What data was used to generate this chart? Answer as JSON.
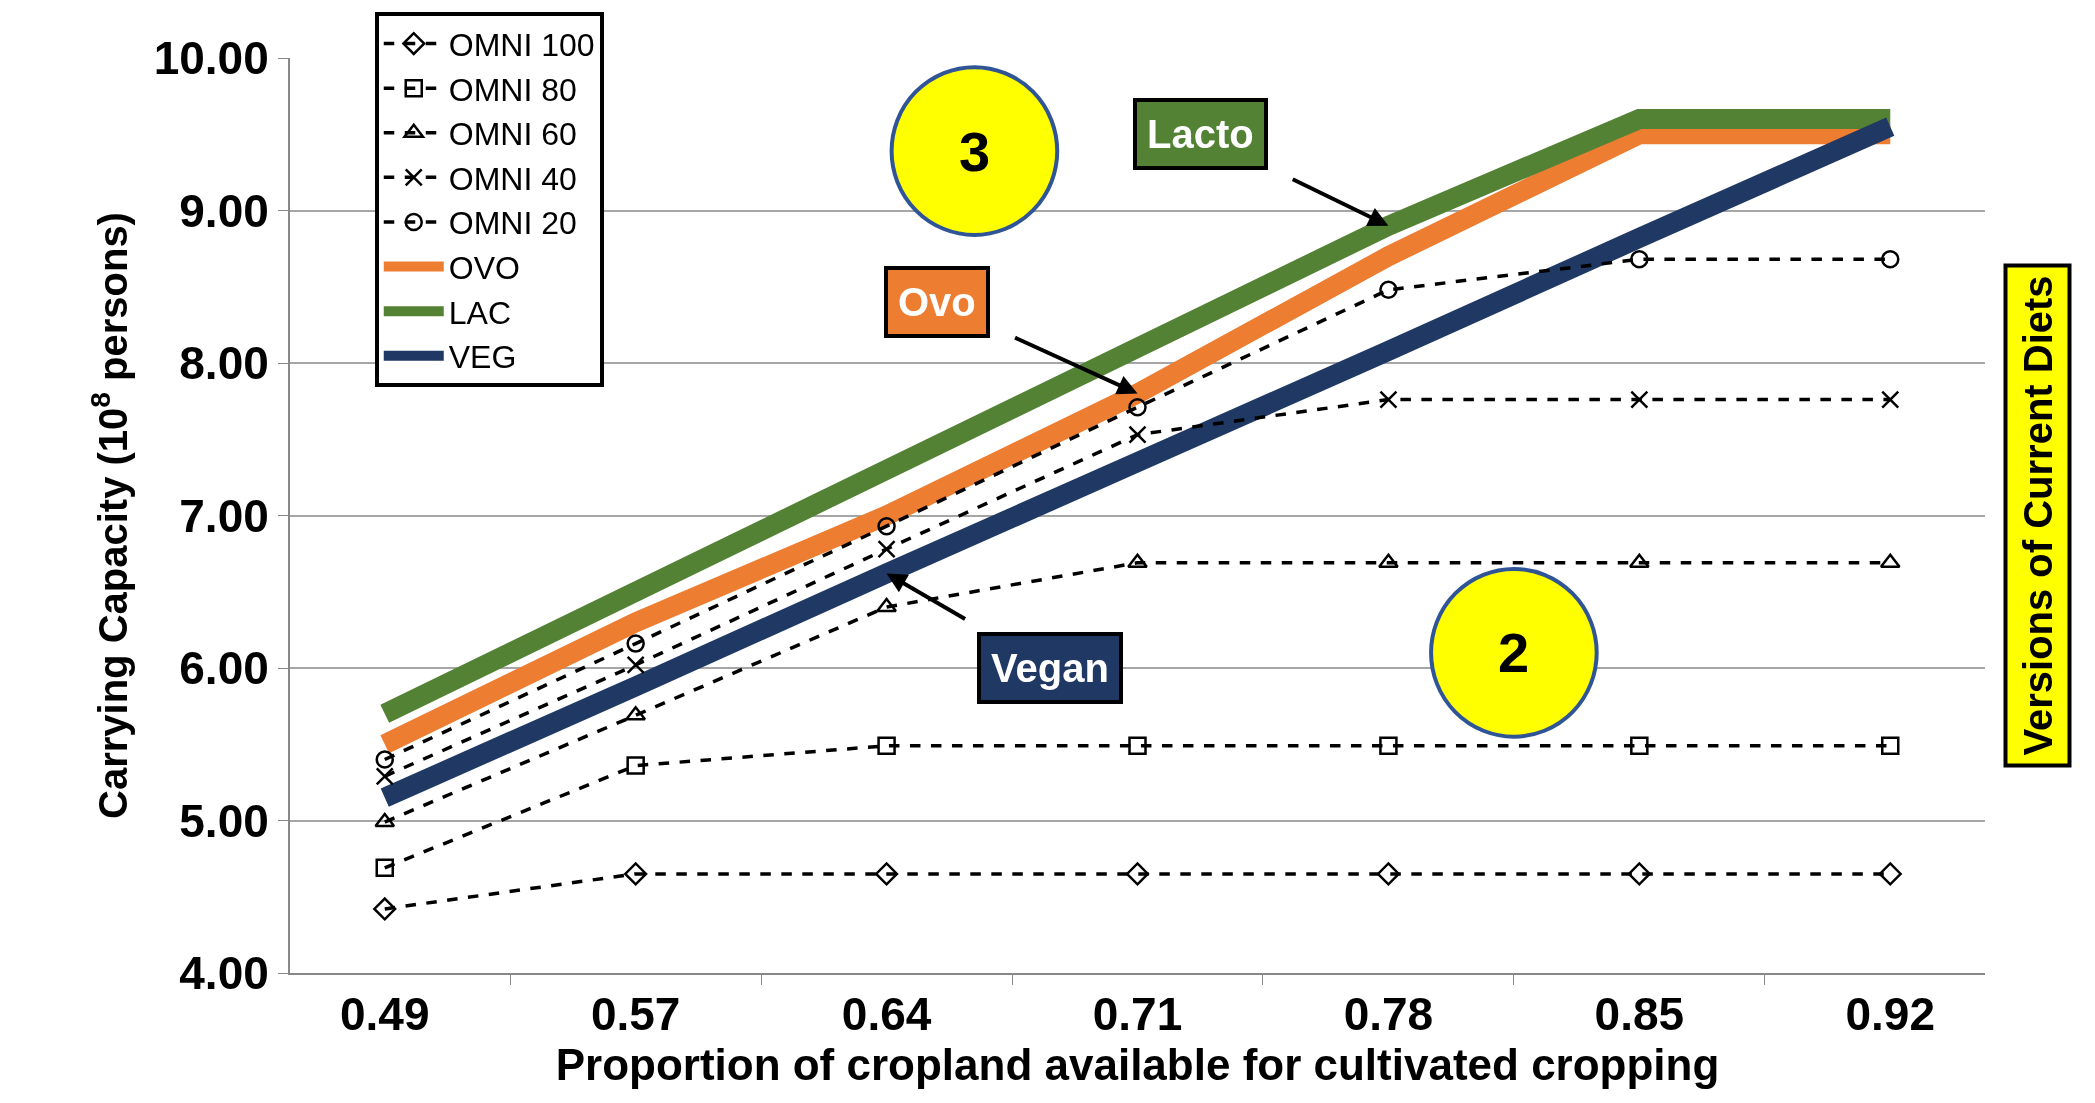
{
  "chart_data": {
    "type": "line",
    "xlabel": "Proportion of cropland available for cultivated cropping",
    "ylabel": "Carrying Capacity (10$^{8}$ persons)",
    "categories": [
      "0.49",
      "0.57",
      "0.64",
      "0.71",
      "0.78",
      "0.85",
      "0.92"
    ],
    "ylim": [
      4,
      10
    ],
    "yticks": [
      {
        "value": 4,
        "label": "4.00"
      },
      {
        "value": 5,
        "label": "5.00"
      },
      {
        "value": 6,
        "label": "6.00"
      },
      {
        "value": 7,
        "label": "7.00"
      },
      {
        "value": 8,
        "label": "8.00"
      },
      {
        "value": 9,
        "label": "9.00"
      },
      {
        "value": 10,
        "label": "10.00"
      }
    ],
    "grid": "y",
    "legend": "top left",
    "series": [
      {
        "name": "OMNI 100",
        "color": "#000000",
        "marker": "diamond",
        "line_style": "dashed",
        "values": [
          4.42,
          4.65,
          4.65,
          4.65,
          4.65,
          4.65,
          4.65
        ]
      },
      {
        "name": "OMNI 80",
        "color": "#000000",
        "marker": "square",
        "line_style": "dashed",
        "values": [
          4.69,
          5.36,
          5.49,
          5.49,
          5.49,
          5.49,
          5.49
        ]
      },
      {
        "name": "OMNI 60",
        "color": "#000000",
        "marker": "triangle",
        "line_style": "dashed",
        "values": [
          4.99,
          5.69,
          6.4,
          6.69,
          6.69,
          6.69,
          6.69
        ]
      },
      {
        "name": "OMNI 40",
        "color": "#000000",
        "marker": "cross",
        "line_style": "dashed",
        "values": [
          5.29,
          6.02,
          6.78,
          7.53,
          7.76,
          7.76,
          7.76
        ]
      },
      {
        "name": "OMNI 20",
        "color": "#000000",
        "marker": "circle",
        "line_style": "dashed",
        "values": [
          5.4,
          6.16,
          6.93,
          7.71,
          8.48,
          8.68,
          8.68
        ]
      },
      {
        "name": "OVO",
        "color": "#ed7d31",
        "marker": "none",
        "line_style": "solid",
        "values": [
          5.5,
          6.3,
          7.0,
          7.8,
          8.7,
          9.5,
          9.5
        ]
      },
      {
        "name": "LAC",
        "color": "#548235",
        "marker": "none",
        "line_style": "solid",
        "values": [
          5.7,
          6.5,
          7.3,
          8.1,
          8.9,
          9.6,
          9.6
        ]
      },
      {
        "name": "VEG",
        "color": "#203864",
        "marker": "none",
        "line_style": "solid",
        "values": [
          5.15,
          5.88,
          6.62,
          7.35,
          8.08,
          8.82,
          9.55
        ]
      }
    ],
    "annotations": [
      "3",
      {
        "text": "Lacto",
        "x": "0.78",
        "y": 8.9
      },
      {
        "text": "Ovo",
        "x": "0.71",
        "y": 7.8
      },
      {
        "text": "Vegan",
        "x": "0.64",
        "y": 6.62
      },
      "2",
      "Versions of Current Diets"
    ]
  }
}
